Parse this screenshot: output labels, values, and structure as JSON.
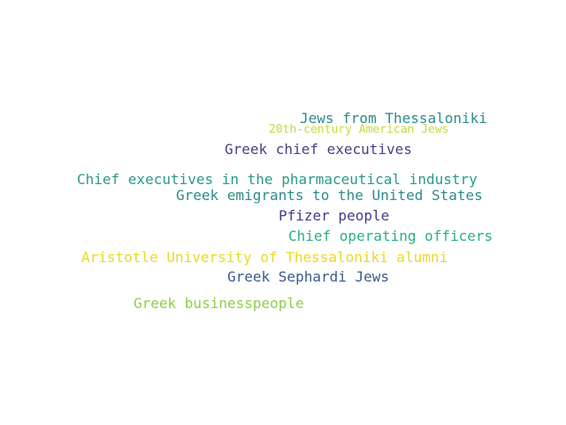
{
  "words": [
    {
      "text": "Jews from Thessaloniki",
      "color": "#2e8c8c"
    },
    {
      "text": "20th-century American Jews",
      "color": "#c9d93a"
    },
    {
      "text": "Greek chief executives",
      "color": "#4a3f86"
    },
    {
      "text": "Chief executives in the pharmaceutical industry",
      "color": "#2a9a8a"
    },
    {
      "text": "Greek emigrants to the United States",
      "color": "#2f8a8d"
    },
    {
      "text": "Pfizer people",
      "color": "#4a3888"
    },
    {
      "text": "Chief operating officers",
      "color": "#2cae87"
    },
    {
      "text": "Aristotle University of Thessaloniki alumni",
      "color": "#e9d927"
    },
    {
      "text": "Greek Sephardi Jews",
      "color": "#3b5a8a"
    },
    {
      "text": "Greek businesspeople",
      "color": "#8fcf48"
    }
  ]
}
